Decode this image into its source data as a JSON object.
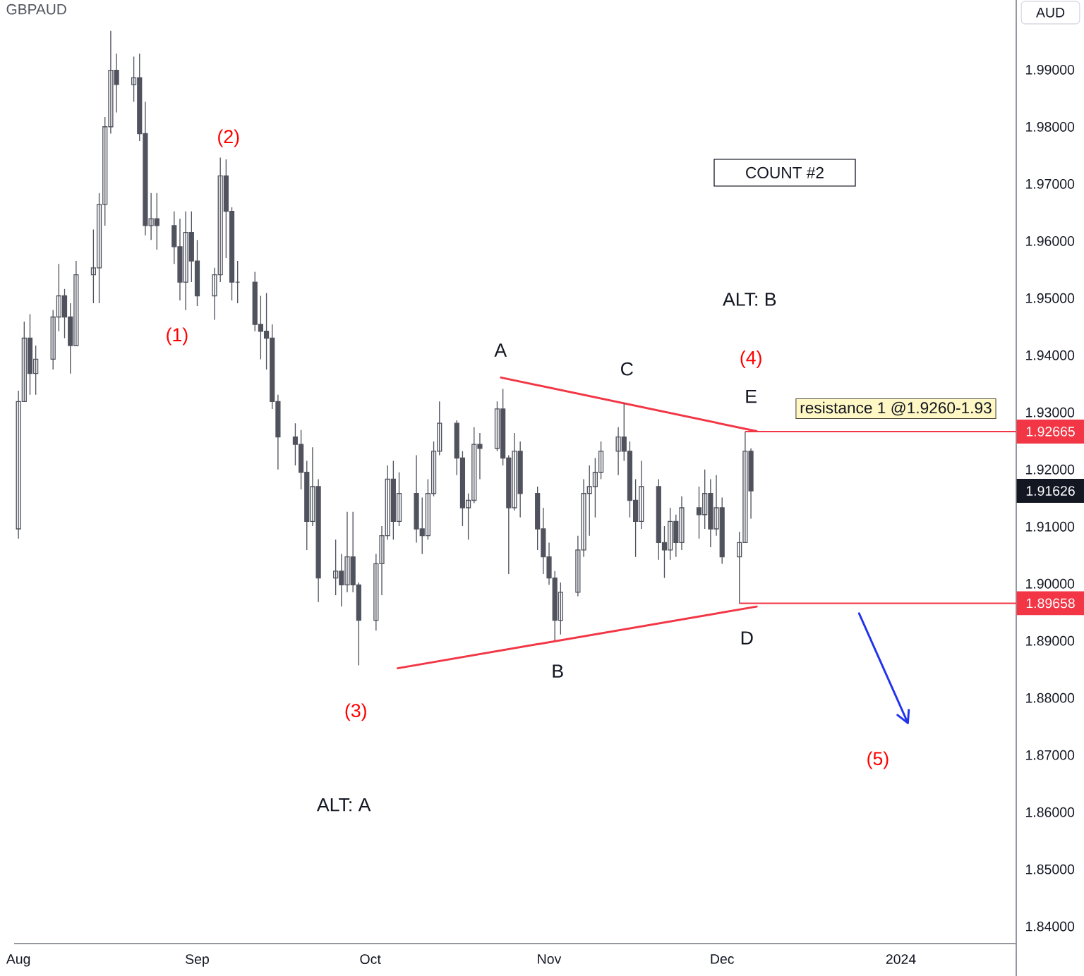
{
  "chart_data": {
    "type": "candlestick",
    "title": "GBPAUD",
    "ylabel": "AUD",
    "color": "#50535e",
    "x": [
      "2023-08-01",
      "2023-08-02",
      "2023-08-03",
      "2023-08-04",
      "2023-08-07",
      "2023-08-08",
      "2023-08-09",
      "2023-08-10",
      "2023-08-11",
      "2023-08-14",
      "2023-08-15",
      "2023-08-16",
      "2023-08-17",
      "2023-08-18",
      "2023-08-21",
      "2023-08-22",
      "2023-08-23",
      "2023-08-24",
      "2023-08-25",
      "2023-08-28",
      "2023-08-29",
      "2023-08-30",
      "2023-08-31",
      "2023-09-01",
      "2023-09-04",
      "2023-09-05",
      "2023-09-06",
      "2023-09-07",
      "2023-09-08",
      "2023-09-11",
      "2023-09-12",
      "2023-09-13",
      "2023-09-14",
      "2023-09-15",
      "2023-09-18",
      "2023-09-19",
      "2023-09-20",
      "2023-09-21",
      "2023-09-22",
      "2023-09-25",
      "2023-09-26",
      "2023-09-27",
      "2023-09-28",
      "2023-09-29",
      "2023-10-02",
      "2023-10-03",
      "2023-10-04",
      "2023-10-05",
      "2023-10-06",
      "2023-10-09",
      "2023-10-10",
      "2023-10-11",
      "2023-10-12",
      "2023-10-13",
      "2023-10-16",
      "2023-10-17",
      "2023-10-18",
      "2023-10-19",
      "2023-10-20",
      "2023-10-23",
      "2023-10-24",
      "2023-10-25",
      "2023-10-26",
      "2023-10-27",
      "2023-10-30",
      "2023-10-31",
      "2023-11-01",
      "2023-11-02",
      "2023-11-03",
      "2023-11-06",
      "2023-11-07",
      "2023-11-08",
      "2023-11-09",
      "2023-11-10",
      "2023-11-13",
      "2023-11-14",
      "2023-11-15",
      "2023-11-16",
      "2023-11-17",
      "2023-11-20",
      "2023-11-21",
      "2023-11-22",
      "2023-11-23",
      "2023-11-24",
      "2023-11-27",
      "2023-11-28",
      "2023-11-29",
      "2023-11-30",
      "2023-12-01",
      "2023-12-04",
      "2023-12-05",
      "2023-12-06"
    ],
    "ohlc": [
      [
        1.9096,
        1.9338,
        1.9079,
        1.9319
      ],
      [
        1.9319,
        1.9459,
        1.9319,
        1.943
      ],
      [
        1.943,
        1.9472,
        1.9331,
        1.9368
      ],
      [
        1.9368,
        1.9417,
        1.9331,
        1.9393
      ],
      [
        1.9393,
        1.9479,
        1.9375,
        1.9467
      ],
      [
        1.9467,
        1.956,
        1.9442,
        1.9504
      ],
      [
        1.9504,
        1.9516,
        1.943,
        1.9467
      ],
      [
        1.9467,
        1.9491,
        1.9368,
        1.9417
      ],
      [
        1.9417,
        1.9565,
        1.9417,
        1.9541
      ],
      [
        1.9541,
        1.962,
        1.9491,
        1.9553
      ],
      [
        1.9553,
        1.9684,
        1.9491,
        1.9664
      ],
      [
        1.9664,
        1.9817,
        1.9627,
        1.98
      ],
      [
        1.98,
        1.9968,
        1.9788,
        1.9899
      ],
      [
        1.9899,
        1.9928,
        1.9825,
        1.9874
      ],
      [
        1.9874,
        1.9923,
        1.9844,
        1.9886
      ],
      [
        1.9886,
        1.9928,
        1.9775,
        1.9788
      ],
      [
        1.9788,
        1.9844,
        1.961,
        1.9627
      ],
      [
        1.9627,
        1.9684,
        1.9602,
        1.9639
      ],
      [
        1.9639,
        1.9684,
        1.9585,
        1.9627
      ],
      [
        1.9627,
        1.9652,
        1.956,
        1.959
      ],
      [
        1.959,
        1.9639,
        1.9496,
        1.9528
      ],
      [
        1.9528,
        1.9652,
        1.9479,
        1.9615
      ],
      [
        1.9615,
        1.9652,
        1.9528,
        1.9565
      ],
      [
        1.9565,
        1.9602,
        1.9486,
        1.9504
      ],
      [
        1.9504,
        1.9553,
        1.9462,
        1.9541
      ],
      [
        1.9541,
        1.9746,
        1.9528,
        1.9714
      ],
      [
        1.9714,
        1.9743,
        1.957,
        1.9652
      ],
      [
        1.9652,
        1.9659,
        1.9496,
        1.9528
      ],
      [
        1.9528,
        1.9565,
        1.9491,
        1.9528
      ],
      [
        1.9528,
        1.9546,
        1.9442,
        1.9454
      ],
      [
        1.9454,
        1.9504,
        1.9393,
        1.9442
      ],
      [
        1.9442,
        1.9509,
        1.9375,
        1.943
      ],
      [
        1.943,
        1.9454,
        1.9306,
        1.9319
      ],
      [
        1.9319,
        1.9331,
        1.92,
        1.9257
      ],
      [
        1.9257,
        1.9281,
        1.9207,
        1.9244
      ],
      [
        1.9244,
        1.9269,
        1.9165,
        1.9195
      ],
      [
        1.9195,
        1.9215,
        1.9059,
        1.9109
      ],
      [
        1.9109,
        1.9239,
        1.9101,
        1.917
      ],
      [
        1.917,
        1.9183,
        1.8968,
        1.901
      ],
      [
        1.901,
        1.9077,
        1.898,
        1.9022
      ],
      [
        1.9022,
        1.9052,
        1.896,
        1.8998
      ],
      [
        1.8998,
        1.9126,
        1.8985,
        1.9047
      ],
      [
        1.9047,
        1.9126,
        1.8985,
        1.8998
      ],
      [
        1.8998,
        1.9002,
        1.8857,
        1.8936
      ],
      [
        1.8936,
        1.9052,
        1.8918,
        1.9035
      ],
      [
        1.9035,
        1.9101,
        1.898,
        1.9084
      ],
      [
        1.9084,
        1.9207,
        1.9077,
        1.9183
      ],
      [
        1.9183,
        1.9215,
        1.9077,
        1.9109
      ],
      [
        1.9109,
        1.9195,
        1.9101,
        1.9158
      ],
      [
        1.9158,
        1.9225,
        1.9072,
        1.9096
      ],
      [
        1.9096,
        1.9151,
        1.9052,
        1.9084
      ],
      [
        1.9084,
        1.9183,
        1.9077,
        1.9158
      ],
      [
        1.9158,
        1.9249,
        1.9153,
        1.9232
      ],
      [
        1.9232,
        1.9319,
        1.9225,
        1.9281
      ],
      [
        1.9281,
        1.9286,
        1.919,
        1.922
      ],
      [
        1.922,
        1.9232,
        1.9101,
        1.9133
      ],
      [
        1.9133,
        1.9158,
        1.9077,
        1.9146
      ],
      [
        1.9146,
        1.9274,
        1.9141,
        1.9244
      ],
      [
        1.9244,
        1.9264,
        1.9183,
        1.9237
      ],
      [
        1.9237,
        1.9319,
        1.9232,
        1.9306
      ],
      [
        1.9306,
        1.9341,
        1.9207,
        1.922
      ],
      [
        1.922,
        1.9225,
        1.9017,
        1.9133
      ],
      [
        1.9133,
        1.9264,
        1.9128,
        1.9232
      ],
      [
        1.9232,
        1.9249,
        1.9116,
        1.9158
      ],
      [
        1.9158,
        1.917,
        1.9059,
        1.9096
      ],
      [
        1.9096,
        1.9133,
        1.9017,
        1.9047
      ],
      [
        1.9047,
        1.9072,
        1.8998,
        1.901
      ],
      [
        1.901,
        1.9022,
        1.8901,
        1.8936
      ],
      [
        1.8936,
        1.9002,
        1.8911,
        1.8985
      ],
      [
        1.8985,
        1.9084,
        1.8978,
        1.9059
      ],
      [
        1.9059,
        1.9183,
        1.9047,
        1.9158
      ],
      [
        1.9158,
        1.9207,
        1.9084,
        1.917
      ],
      [
        1.917,
        1.922,
        1.9116,
        1.9195
      ],
      [
        1.9195,
        1.9249,
        1.9183,
        1.9232
      ],
      [
        1.9232,
        1.9274,
        1.919,
        1.9257
      ],
      [
        1.9257,
        1.9316,
        1.9215,
        1.9232
      ],
      [
        1.9232,
        1.9249,
        1.9116,
        1.9146
      ],
      [
        1.9146,
        1.9183,
        1.9047,
        1.9109
      ],
      [
        1.9109,
        1.9215,
        1.9096,
        1.917
      ],
      [
        1.917,
        1.9183,
        1.9042,
        1.9072
      ],
      [
        1.9072,
        1.9101,
        1.901,
        1.9059
      ],
      [
        1.9059,
        1.9133,
        1.9042,
        1.9109
      ],
      [
        1.9109,
        1.9121,
        1.9047,
        1.9072
      ],
      [
        1.9072,
        1.9153,
        1.9059,
        1.9133
      ],
      [
        1.9133,
        1.917,
        1.9079,
        1.9121
      ],
      [
        1.9121,
        1.92,
        1.9096,
        1.9158
      ],
      [
        1.9158,
        1.9183,
        1.9064,
        1.9096
      ],
      [
        1.9096,
        1.919,
        1.9084,
        1.9133
      ],
      [
        1.9133,
        1.9151,
        1.9035,
        1.9047
      ],
      [
        1.9047,
        1.9091,
        1.89658,
        1.9072
      ],
      [
        1.9072,
        1.92665,
        1.9072,
        1.9232
      ],
      [
        1.9232,
        1.9237,
        1.9114,
        1.91626
      ]
    ],
    "series": [
      {
        "type": "line",
        "color": "#f23645",
        "x": [
          "2023-10-23T16:00",
          "2023-12-07"
        ],
        "values": [
          1.9361,
          1.9267
        ]
      },
      {
        "type": "line",
        "color": "#f23645",
        "x": [
          "2023-10-05T18:00",
          "2023-12-07"
        ],
        "values": [
          1.8852,
          1.896
        ]
      },
      {
        "type": "line",
        "color": "#2233ee",
        "x": [
          "2023-12-24T18:00",
          "2024-01-02T05:00"
        ],
        "values": [
          1.8948,
          1.8756
        ]
      }
    ],
    "xlim": [
      "2023-07-31T06:00",
      "2024-01-21"
    ],
    "ylim": [
      1.837,
      2.0022
    ],
    "xticks": [
      {
        "value": "2023-08-01",
        "label": "Aug"
      },
      {
        "value": "2023-09-01",
        "label": "Sep"
      },
      {
        "value": "2023-10-01",
        "label": "Oct"
      },
      {
        "value": "2023-11-01",
        "label": "Nov"
      },
      {
        "value": "2023-12-01",
        "label": "Dec"
      },
      {
        "value": "2024-01-01",
        "label": "2024"
      }
    ],
    "yticks": [
      {
        "value": 1.84,
        "label": "1.84000"
      },
      {
        "value": 1.85,
        "label": "1.85000"
      },
      {
        "value": 1.86,
        "label": "1.86000"
      },
      {
        "value": 1.87,
        "label": "1.87000"
      },
      {
        "value": 1.88,
        "label": "1.88000"
      },
      {
        "value": 1.89,
        "label": "1.89000"
      },
      {
        "value": 1.9,
        "label": "1.90000"
      },
      {
        "value": 1.91,
        "label": "1.91000"
      },
      {
        "value": 1.92,
        "label": "1.92000"
      },
      {
        "value": 1.93,
        "label": "1.93000"
      },
      {
        "value": 1.94,
        "label": "1.94000"
      },
      {
        "value": 1.95,
        "label": "1.95000"
      },
      {
        "value": 1.96,
        "label": "1.96000"
      },
      {
        "value": 1.97,
        "label": "1.97000"
      },
      {
        "value": 1.98,
        "label": "1.98000"
      },
      {
        "value": 1.99,
        "label": "1.99000"
      }
    ],
    "ref_lines": [
      {
        "axis": "y",
        "value": 1.92665,
        "label": "1.92665",
        "color": "#f23645"
      },
      {
        "axis": "y",
        "value": 1.89658,
        "label": "1.89658",
        "color": "#f23645"
      }
    ],
    "annotations": [
      "(1)",
      "(2)",
      "(3)",
      "(4)",
      "(5)",
      "A",
      "B",
      "C",
      "D",
      "E",
      "ALT: B",
      "ALT: A",
      "COUNT #2",
      "resistance 1 @1.9260-1.93",
      "1.91626"
    ]
  }
}
